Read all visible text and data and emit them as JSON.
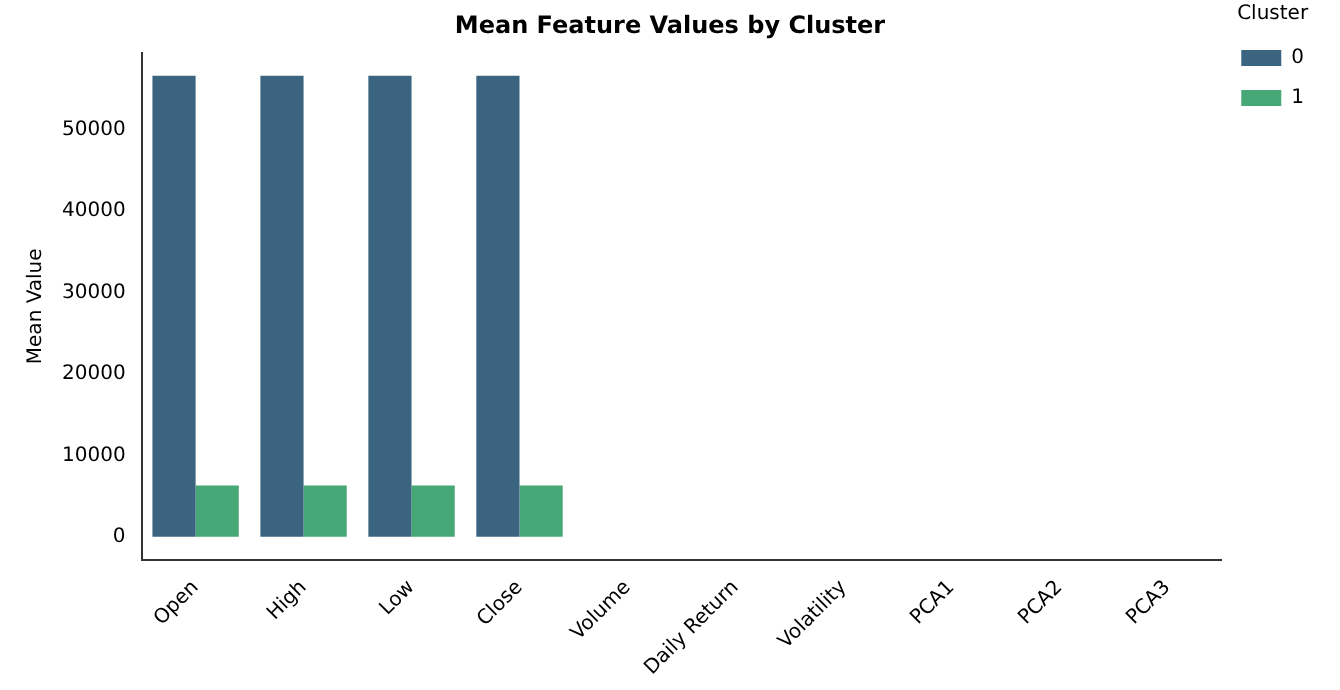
{
  "chart_data": {
    "type": "bar",
    "title": "Mean Feature Values by Cluster",
    "ylabel": "Mean Value",
    "legend_title": "Cluster",
    "categories": [
      "Open",
      "High",
      "Low",
      "Close",
      "Volume",
      "Daily Return",
      "Volatility",
      "PCA1",
      "PCA2",
      "PCA3"
    ],
    "series": [
      {
        "name": "0",
        "color": "#3b6481",
        "values": [
          56600,
          56600,
          56600,
          56600,
          0,
          0,
          0,
          0,
          0,
          0
        ]
      },
      {
        "name": "1",
        "color": "#46a877",
        "values": [
          6300,
          6300,
          6300,
          6300,
          0,
          0,
          0,
          0,
          0,
          0
        ]
      }
    ],
    "ylim": [
      -2830,
      59430
    ],
    "yticks": [
      0,
      10000,
      20000,
      30000,
      40000,
      50000
    ],
    "grid": false,
    "legend": "top right"
  }
}
